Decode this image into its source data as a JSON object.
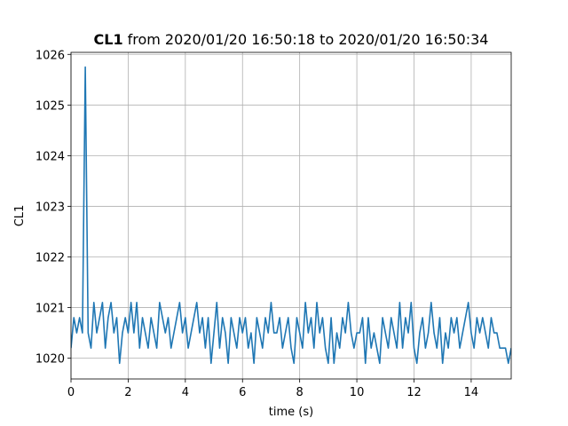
{
  "chart_data": {
    "type": "line",
    "title_bold": "CL1",
    "title": "from 2020/01/20 16:50:18 to 2020/01/20 16:50:34",
    "xlabel": "time (s)",
    "ylabel": "CL1",
    "x": [
      0,
      0.1,
      0.2,
      0.3,
      0.4,
      0.5,
      0.6,
      0.7,
      0.8,
      0.9,
      1,
      1.1,
      1.2,
      1.3,
      1.4,
      1.5,
      1.6,
      1.7,
      1.8,
      1.9,
      2,
      2.1,
      2.2,
      2.3,
      2.4,
      2.5,
      2.6,
      2.7,
      2.8,
      2.9,
      3,
      3.1,
      3.2,
      3.3,
      3.4,
      3.5,
      3.6,
      3.7,
      3.8,
      3.9,
      4,
      4.1,
      4.2,
      4.3,
      4.4,
      4.5,
      4.6,
      4.7,
      4.8,
      4.9,
      5,
      5.1,
      5.2,
      5.3,
      5.4,
      5.5,
      5.6,
      5.7,
      5.8,
      5.9,
      6,
      6.1,
      6.2,
      6.3,
      6.4,
      6.5,
      6.6,
      6.7,
      6.8,
      6.9,
      7,
      7.1,
      7.2,
      7.3,
      7.4,
      7.5,
      7.6,
      7.7,
      7.8,
      7.9,
      8,
      8.1,
      8.2,
      8.3,
      8.4,
      8.5,
      8.6,
      8.7,
      8.8,
      8.9,
      9,
      9.1,
      9.2,
      9.3,
      9.4,
      9.5,
      9.6,
      9.7,
      9.8,
      9.9,
      10,
      10.1,
      10.2,
      10.3,
      10.4,
      10.5,
      10.6,
      10.7,
      10.8,
      10.9,
      11,
      11.1,
      11.2,
      11.3,
      11.4,
      11.5,
      11.6,
      11.7,
      11.8,
      11.9,
      12,
      12.1,
      12.2,
      12.3,
      12.4,
      12.5,
      12.6,
      12.7,
      12.8,
      12.9,
      13,
      13.1,
      13.2,
      13.3,
      13.4,
      13.5,
      13.6,
      13.7,
      13.8,
      13.9,
      14,
      14.1,
      14.2,
      14.3,
      14.4,
      14.5,
      14.6,
      14.7,
      14.8,
      14.9,
      15,
      15.1,
      15.2,
      15.3,
      15.4
    ],
    "series": [
      {
        "name": "CL1",
        "color": "#1f77b4",
        "values": [
          1020.2,
          1020.8,
          1020.5,
          1020.8,
          1020.5,
          1025.75,
          1020.5,
          1020.2,
          1021.1,
          1020.5,
          1020.8,
          1021.1,
          1020.2,
          1020.8,
          1021.1,
          1020.5,
          1020.8,
          1019.9,
          1020.5,
          1020.8,
          1020.5,
          1021.1,
          1020.5,
          1021.1,
          1020.2,
          1020.8,
          1020.5,
          1020.2,
          1020.8,
          1020.5,
          1020.2,
          1021.1,
          1020.8,
          1020.5,
          1020.8,
          1020.2,
          1020.5,
          1020.8,
          1021.1,
          1020.5,
          1020.8,
          1020.2,
          1020.5,
          1020.8,
          1021.1,
          1020.5,
          1020.8,
          1020.2,
          1020.8,
          1019.9,
          1020.5,
          1021.1,
          1020.2,
          1020.8,
          1020.5,
          1019.9,
          1020.8,
          1020.5,
          1020.2,
          1020.8,
          1020.5,
          1020.8,
          1020.2,
          1020.5,
          1019.9,
          1020.8,
          1020.5,
          1020.2,
          1020.8,
          1020.5,
          1021.1,
          1020.5,
          1020.5,
          1020.8,
          1020.2,
          1020.5,
          1020.8,
          1020.2,
          1019.9,
          1020.8,
          1020.5,
          1020.2,
          1021.1,
          1020.5,
          1020.8,
          1020.2,
          1021.1,
          1020.5,
          1020.8,
          1020.2,
          1019.9,
          1020.8,
          1019.9,
          1020.5,
          1020.2,
          1020.8,
          1020.5,
          1021.1,
          1020.5,
          1020.2,
          1020.5,
          1020.5,
          1020.8,
          1019.9,
          1020.8,
          1020.2,
          1020.5,
          1020.2,
          1019.9,
          1020.8,
          1020.5,
          1020.2,
          1020.8,
          1020.5,
          1020.2,
          1021.1,
          1020.2,
          1020.8,
          1020.5,
          1021.1,
          1020.2,
          1019.9,
          1020.5,
          1020.8,
          1020.2,
          1020.5,
          1021.1,
          1020.5,
          1020.2,
          1020.8,
          1019.9,
          1020.5,
          1020.2,
          1020.8,
          1020.5,
          1020.8,
          1020.2,
          1020.5,
          1020.8,
          1021.1,
          1020.5,
          1020.2,
          1020.8,
          1020.5,
          1020.8,
          1020.5,
          1020.2,
          1020.8,
          1020.5,
          1020.5,
          1020.2,
          1020.2,
          1020.2,
          1019.9,
          1020.2
        ]
      }
    ],
    "xlim": [
      0,
      15.4
    ],
    "xticks": [
      0,
      2,
      4,
      6,
      8,
      10,
      12,
      14
    ],
    "ylim": [
      1019.59,
      1026.04
    ],
    "yticks": [
      1020,
      1021,
      1022,
      1023,
      1024,
      1025,
      1026
    ],
    "grid": true
  }
}
